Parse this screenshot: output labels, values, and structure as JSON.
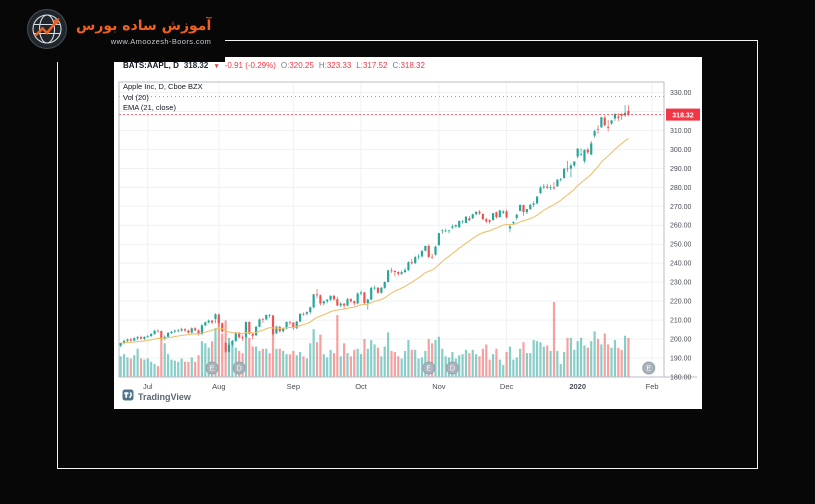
{
  "branding": {
    "site_name": "آموزش ساده بورس",
    "site_url": "www.Amoozesh-Boors.com",
    "accent_color": "#f2601d"
  },
  "chart": {
    "header": {
      "symbol": "BATS:AAPL, D",
      "last_price": "318.32",
      "direction_icon": "▼",
      "change": "-0.91 (-0.29%)",
      "ohlc": {
        "o_label": "O:",
        "o_value": "320.25",
        "h_label": "H:",
        "h_value": "323.33",
        "l_label": "L:",
        "l_value": "317.52",
        "c_label": "C:",
        "c_value": "318.32"
      }
    },
    "legend": {
      "title": "Apple Inc, D, Cboe BZX",
      "volume": "Vol (20)",
      "ema": "EMA (21, close)"
    },
    "price_badge": "318.32",
    "watermark": "TradingView",
    "y_axis_labels": [
      "330.00",
      "320.00",
      "310.00",
      "300.00",
      "290.00",
      "280.00",
      "270.00",
      "260.00",
      "250.00",
      "240.00",
      "230.00",
      "220.00",
      "210.00",
      "200.00",
      "190.00",
      "180.00"
    ]
  },
  "chart_data": {
    "type": "candlestick",
    "title": "Apple Inc, D, Cboe BZX",
    "symbol": "BATS:AAPL",
    "interval": "D",
    "exchange": "Cboe BZX",
    "ylim": [
      180,
      335.5
    ],
    "right_margin_bars": 10,
    "volume_area_height": 75,
    "last_price": 318.32,
    "dashed_level": 327.85,
    "ema_period": 21,
    "x_axis_labels": [
      "Jul",
      "Aug",
      "Sep",
      "Oct",
      "Nov",
      "Dec",
      "2020",
      "Feb"
    ],
    "months": [
      {
        "label": "Jul",
        "index": 8
      },
      {
        "label": "Aug",
        "index": 29
      },
      {
        "label": "Sep",
        "index": 51
      },
      {
        "label": "Oct",
        "index": 71
      },
      {
        "label": "Nov",
        "index": 94
      },
      {
        "label": "Dec",
        "index": 114
      },
      {
        "label": "2020",
        "index": 135,
        "bold": true
      },
      {
        "label": "Feb",
        "index": 157
      }
    ],
    "markers": [
      {
        "label": "E",
        "index": 27
      },
      {
        "label": "D",
        "index": 35
      },
      {
        "label": "E",
        "index": 91
      },
      {
        "label": "D",
        "index": 98
      },
      {
        "label": "E",
        "index": 156
      }
    ],
    "candles": [
      [
        196.5,
        198.1,
        195.8,
        197.9
      ],
      [
        197.9,
        199.5,
        197.2,
        199.1
      ],
      [
        199.1,
        200.3,
        198.4,
        199.8
      ],
      [
        199.8,
        200.6,
        198.7,
        199.2
      ],
      [
        199.2,
        200.9,
        198.9,
        200.4
      ],
      [
        200.4,
        201.6,
        199.6,
        201.0
      ],
      [
        201.0,
        201.8,
        199.9,
        200.2
      ],
      [
        200.2,
        201.4,
        199.5,
        201.2
      ],
      [
        201.2,
        202.2,
        200.6,
        201.55
      ],
      [
        201.6,
        203.1,
        201.1,
        202.73
      ],
      [
        202.7,
        204.9,
        202.3,
        204.41
      ],
      [
        204.4,
        205.1,
        203.5,
        204.23
      ],
      [
        204.2,
        204.6,
        199.6,
        200.02
      ],
      [
        200.0,
        202.0,
        199.3,
        201.24
      ],
      [
        201.2,
        203.7,
        200.9,
        203.23
      ],
      [
        203.2,
        204.4,
        202.6,
        203.86
      ],
      [
        203.9,
        205.1,
        203.1,
        204.41
      ],
      [
        204.4,
        205.3,
        203.6,
        204.5
      ],
      [
        204.5,
        206.0,
        203.9,
        205.21
      ],
      [
        205.2,
        205.7,
        203.8,
        204.5
      ],
      [
        204.5,
        205.0,
        202.8,
        203.35
      ],
      [
        203.4,
        206.2,
        203.0,
        205.66
      ],
      [
        205.7,
        206.3,
        204.0,
        204.61
      ],
      [
        204.6,
        205.2,
        201.9,
        202.59
      ],
      [
        202.6,
        207.9,
        202.3,
        207.22
      ],
      [
        207.2,
        209.2,
        206.8,
        208.84
      ],
      [
        208.8,
        210.3,
        208.2,
        209.68
      ],
      [
        209.7,
        210.0,
        207.9,
        208.78
      ],
      [
        210.6,
        213.6,
        208.3,
        213.04
      ],
      [
        213.0,
        213.4,
        206.7,
        208.43
      ],
      [
        208.4,
        208.7,
        203.5,
        204.02
      ],
      [
        197.9,
        198.6,
        192.6,
        193.34
      ],
      [
        193.3,
        198.3,
        192.8,
        197.0
      ],
      [
        197.0,
        199.6,
        196.0,
        199.04
      ],
      [
        199.0,
        203.9,
        198.5,
        203.43
      ],
      [
        203.4,
        203.8,
        200.2,
        200.99
      ],
      [
        201.0,
        202.0,
        199.2,
        200.48
      ],
      [
        201.3,
        209.3,
        200.8,
        208.97
      ],
      [
        209.0,
        209.4,
        202.3,
        202.75
      ],
      [
        202.8,
        203.5,
        199.9,
        201.74
      ],
      [
        202.0,
        206.9,
        201.5,
        206.5
      ],
      [
        206.5,
        210.9,
        206.2,
        210.35
      ],
      [
        210.4,
        211.0,
        208.6,
        210.36
      ],
      [
        210.4,
        213.0,
        209.9,
        212.64
      ],
      [
        212.6,
        213.2,
        211.2,
        212.46
      ],
      [
        212.5,
        212.6,
        201.9,
        202.64
      ],
      [
        203.0,
        207.2,
        202.6,
        206.49
      ],
      [
        206.5,
        206.9,
        203.4,
        204.16
      ],
      [
        204.2,
        206.0,
        203.3,
        205.53
      ],
      [
        205.5,
        209.3,
        205.1,
        209.01
      ],
      [
        209.0,
        209.6,
        207.5,
        208.74
      ],
      [
        208.7,
        208.9,
        204.9,
        205.7
      ],
      [
        205.7,
        209.5,
        205.3,
        209.19
      ],
      [
        209.2,
        213.7,
        208.9,
        213.28
      ],
      [
        213.3,
        214.0,
        212.3,
        213.26
      ],
      [
        213.3,
        214.6,
        212.4,
        214.17
      ],
      [
        214.2,
        217.1,
        213.2,
        216.7
      ],
      [
        216.7,
        223.7,
        216.1,
        223.59
      ],
      [
        223.6,
        226.4,
        221.5,
        223.09
      ],
      [
        223.1,
        223.5,
        217.9,
        218.75
      ],
      [
        218.8,
        220.4,
        217.7,
        219.9
      ],
      [
        219.9,
        221.2,
        218.8,
        220.7
      ],
      [
        220.7,
        223.1,
        219.9,
        222.77
      ],
      [
        222.8,
        223.3,
        220.2,
        220.96
      ],
      [
        221.0,
        222.3,
        217.3,
        217.73
      ],
      [
        217.7,
        219.4,
        216.8,
        218.72
      ],
      [
        218.7,
        219.0,
        216.2,
        217.68
      ],
      [
        217.7,
        221.8,
        217.2,
        221.03
      ],
      [
        221.0,
        221.7,
        219.1,
        219.89
      ],
      [
        219.9,
        220.3,
        217.6,
        218.82
      ],
      [
        218.8,
        224.6,
        218.3,
        223.97
      ],
      [
        224.0,
        225.6,
        223.0,
        224.59
      ],
      [
        224.6,
        224.9,
        218.3,
        218.96
      ],
      [
        219.0,
        221.3,
        215.6,
        220.82
      ],
      [
        220.8,
        227.5,
        220.4,
        227.01
      ],
      [
        227.0,
        228.1,
        226.0,
        227.06
      ],
      [
        227.1,
        227.3,
        223.9,
        224.4
      ],
      [
        224.4,
        227.5,
        223.9,
        227.03
      ],
      [
        227.0,
        230.4,
        226.5,
        230.09
      ],
      [
        230.1,
        236.6,
        229.8,
        236.21
      ],
      [
        236.2,
        237.6,
        234.9,
        235.87
      ],
      [
        235.9,
        236.2,
        233.2,
        235.32
      ],
      [
        235.3,
        235.8,
        233.4,
        234.37
      ],
      [
        234.4,
        236.2,
        233.8,
        235.28
      ],
      [
        235.3,
        237.6,
        234.9,
        236.41
      ],
      [
        236.4,
        241.0,
        235.9,
        240.51
      ],
      [
        240.5,
        242.2,
        239.3,
        239.96
      ],
      [
        240.0,
        243.9,
        239.6,
        243.18
      ],
      [
        243.2,
        244.8,
        242.1,
        243.58
      ],
      [
        243.6,
        246.7,
        242.9,
        246.58
      ],
      [
        246.6,
        249.3,
        246.2,
        249.05
      ],
      [
        249.1,
        249.8,
        242.6,
        243.29
      ],
      [
        243.3,
        245.0,
        242.3,
        243.26
      ],
      [
        244.5,
        249.2,
        243.9,
        248.76
      ],
      [
        249.5,
        255.9,
        249.2,
        255.82
      ],
      [
        257.3,
        257.8,
        255.4,
        257.5
      ],
      [
        257.1,
        258.2,
        256.3,
        257.13
      ],
      [
        257.2,
        257.5,
        255.8,
        257.24
      ],
      [
        258.7,
        260.4,
        258.1,
        259.43
      ],
      [
        259.4,
        260.4,
        258.7,
        260.14
      ],
      [
        258.9,
        262.5,
        258.7,
        262.2
      ],
      [
        261.6,
        262.8,
        260.9,
        261.96
      ],
      [
        261.2,
        264.9,
        261.1,
        264.47
      ],
      [
        263.7,
        264.9,
        262.1,
        262.64
      ],
      [
        263.7,
        266.1,
        263.3,
        265.76
      ],
      [
        265.8,
        267.4,
        265.3,
        267.1
      ],
      [
        267.1,
        268.0,
        265.4,
        266.29
      ],
      [
        266.0,
        266.1,
        262.7,
        263.19
      ],
      [
        263.2,
        264.0,
        261.2,
        262.01
      ],
      [
        262.6,
        263.2,
        260.8,
        261.78
      ],
      [
        262.7,
        266.4,
        262.5,
        266.37
      ],
      [
        266.9,
        267.2,
        263.5,
        264.29
      ],
      [
        264.3,
        267.9,
        264.0,
        267.84
      ],
      [
        266.6,
        268.0,
        265.9,
        267.25
      ],
      [
        267.3,
        268.2,
        263.5,
        264.16
      ],
      [
        258.3,
        259.9,
        256.3,
        259.45
      ],
      [
        261.1,
        262.0,
        260.4,
        261.74
      ],
      [
        263.8,
        265.9,
        262.7,
        265.58
      ],
      [
        267.5,
        271.0,
        267.3,
        270.71
      ],
      [
        270.7,
        270.8,
        264.9,
        266.92
      ],
      [
        266.9,
        268.6,
        265.9,
        268.48
      ],
      [
        268.5,
        271.1,
        268.1,
        270.77
      ],
      [
        270.8,
        272.6,
        269.5,
        271.46
      ],
      [
        271.5,
        275.3,
        270.9,
        275.15
      ],
      [
        277.0,
        280.8,
        276.4,
        279.86
      ],
      [
        279.9,
        281.8,
        279.1,
        280.41
      ],
      [
        280.4,
        281.9,
        279.1,
        279.74
      ],
      [
        279.7,
        281.2,
        278.6,
        280.02
      ],
      [
        280.0,
        282.7,
        278.8,
        279.44
      ],
      [
        280.5,
        284.3,
        280.2,
        284.0
      ],
      [
        284.0,
        284.9,
        283.0,
        284.27
      ],
      [
        284.8,
        290.0,
        284.7,
        289.91
      ],
      [
        289.9,
        293.9,
        288.1,
        289.8
      ],
      [
        289.8,
        292.7,
        285.2,
        291.52
      ],
      [
        291.5,
        293.7,
        290.8,
        293.65
      ],
      [
        296.2,
        300.6,
        295.2,
        300.35
      ],
      [
        297.2,
        300.6,
        296.5,
        297.43
      ],
      [
        293.8,
        300.0,
        292.8,
        299.8
      ],
      [
        299.8,
        300.9,
        297.5,
        298.39
      ],
      [
        297.2,
        304.4,
        297.1,
        303.19
      ],
      [
        307.2,
        310.4,
        306.2,
        309.63
      ],
      [
        310.6,
        312.7,
        308.3,
        310.33
      ],
      [
        311.6,
        317.1,
        311.3,
        316.96
      ],
      [
        316.7,
        317.6,
        312.2,
        312.68
      ],
      [
        311.9,
        315.5,
        309.5,
        311.34
      ],
      [
        313.6,
        315.7,
        312.9,
        315.24
      ],
      [
        316.3,
        318.7,
        315.0,
        318.73
      ],
      [
        317.2,
        319.0,
        315.0,
        316.57
      ],
      [
        318.6,
        319.1,
        315.5,
        317.7
      ],
      [
        317.9,
        323.3,
        317.1,
        319.23
      ],
      [
        320.25,
        323.33,
        317.52,
        318.32
      ]
    ],
    "volumes": [
      19,
      21,
      18,
      17,
      20,
      26,
      17,
      16,
      17,
      14,
      12,
      10,
      35,
      31,
      21,
      16,
      15,
      14,
      17,
      14,
      14,
      18,
      14,
      20,
      33,
      31,
      27,
      33,
      45,
      54,
      40,
      52,
      36,
      33,
      27,
      24,
      22,
      38,
      36,
      28,
      28,
      24,
      26,
      26,
      22,
      46,
      26,
      26,
      24,
      21,
      21,
      24,
      20,
      23,
      19,
      17,
      31,
      44,
      32,
      39,
      21,
      18,
      25,
      22,
      57,
      19,
      31,
      22,
      19,
      25,
      26,
      21,
      35,
      26,
      34,
      30,
      27,
      19,
      28,
      41,
      24,
      23,
      19,
      17,
      24,
      34,
      25,
      25,
      17,
      18,
      24,
      35,
      31,
      34,
      37,
      26,
      19,
      18,
      23,
      17,
      20,
      21,
      25,
      22,
      25,
      21,
      19,
      26,
      30,
      16,
      21,
      26,
      16,
      11,
      23,
      28,
      16,
      18,
      26,
      32,
      22,
      22,
      34,
      33,
      32,
      28,
      29,
      24,
      69,
      24,
      12,
      23,
      36,
      36,
      25,
      33,
      36,
      29,
      27,
      33,
      42,
      35,
      30,
      40,
      30,
      27,
      34,
      27,
      25,
      38,
      36
    ],
    "colors": {
      "up": "#26a69a",
      "down": "#ef5350",
      "volume_up": "rgba(38,166,154,0.55)",
      "volume_down": "rgba(239,83,80,0.55)",
      "ema": "#edc26e",
      "grid": "#eef1f4",
      "border": "#b7bcc5",
      "axis_text": "#4a4e57",
      "last_price_color": "#f23645"
    }
  }
}
